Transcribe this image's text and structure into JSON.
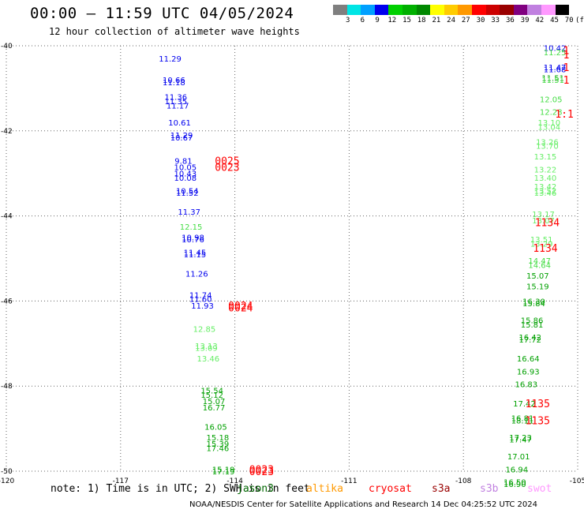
{
  "header": {
    "title": "00:00 – 11:59 UTC 04/05/2024",
    "subtitle": "12 hour collection of altimeter wave heights"
  },
  "colorbar": {
    "swatches": [
      "#7f7f7f",
      "#00e5e5",
      "#00a0ff",
      "#0000ee",
      "#00d000",
      "#00b000",
      "#008800",
      "#ffff00",
      "#ffcc00",
      "#ff9900",
      "#ff0000",
      "#cc0000",
      "#990000",
      "#800080",
      "#c080e0",
      "#ff99ff",
      "#000000"
    ],
    "ticks": [
      "3",
      "6",
      "9",
      "12",
      "15",
      "18",
      "21",
      "24",
      "27",
      "30",
      "33",
      "36",
      "39",
      "42",
      "45",
      "70",
      "(ft)"
    ]
  },
  "chart_data": {
    "type": "scatter",
    "xlim": [
      -120,
      -105
    ],
    "ylim": [
      -50,
      -40
    ],
    "x_ticks": [
      "-120",
      "-117",
      "-114",
      "-111",
      "-108",
      "-105"
    ],
    "y_ticks": [
      "-50",
      "-48",
      "-46",
      "-44",
      "-42",
      "-40"
    ],
    "grid": true,
    "points": [
      {
        "x": -115.7,
        "y": -40.3,
        "label": "11.29",
        "color": "#0000ee"
      },
      {
        "x": -115.6,
        "y": -40.8,
        "label": "10.66",
        "color": "#0000ee"
      },
      {
        "x": -115.6,
        "y": -40.85,
        "label": "11.18",
        "color": "#0000ee"
      },
      {
        "x": -115.55,
        "y": -41.2,
        "label": "11.36",
        "color": "#0000ee"
      },
      {
        "x": -115.55,
        "y": -41.3,
        "label": "11.35",
        "color": "#0000ee"
      },
      {
        "x": -115.5,
        "y": -41.4,
        "label": "11.17",
        "color": "#0000ee"
      },
      {
        "x": -115.45,
        "y": -41.8,
        "label": "10.61",
        "color": "#0000ee"
      },
      {
        "x": -115.4,
        "y": -42.1,
        "label": "11.29",
        "color": "#0000ee"
      },
      {
        "x": -115.4,
        "y": -42.15,
        "label": "10.67",
        "color": "#0000ee"
      },
      {
        "x": -115.35,
        "y": -42.7,
        "label": "9.81",
        "color": "#0000ee"
      },
      {
        "x": -115.3,
        "y": -42.85,
        "label": "10.05",
        "color": "#0000ee"
      },
      {
        "x": -115.3,
        "y": -43.0,
        "label": "10.43",
        "color": "#0000ee"
      },
      {
        "x": -115.3,
        "y": -43.1,
        "label": "10.08",
        "color": "#0000ee"
      },
      {
        "x": -115.25,
        "y": -43.4,
        "label": "10.54",
        "color": "#0000ee"
      },
      {
        "x": -115.25,
        "y": -43.45,
        "label": "11.52",
        "color": "#0000ee"
      },
      {
        "x": -115.2,
        "y": -43.9,
        "label": "11.37",
        "color": "#0000ee"
      },
      {
        "x": -115.15,
        "y": -44.25,
        "label": "12.15",
        "color": "#44dd44"
      },
      {
        "x": -115.1,
        "y": -44.5,
        "label": "10.98",
        "color": "#0000ee"
      },
      {
        "x": -115.1,
        "y": -44.55,
        "label": "10.76",
        "color": "#0000ee"
      },
      {
        "x": -115.05,
        "y": -44.85,
        "label": "11.45",
        "color": "#0000ee"
      },
      {
        "x": -115.05,
        "y": -44.9,
        "label": "11.15",
        "color": "#0000ee"
      },
      {
        "x": -115.0,
        "y": -45.35,
        "label": "11.26",
        "color": "#0000ee"
      },
      {
        "x": -114.9,
        "y": -45.85,
        "label": "11.74",
        "color": "#0000ee"
      },
      {
        "x": -114.9,
        "y": -45.95,
        "label": "11.60",
        "color": "#0000ee"
      },
      {
        "x": -114.85,
        "y": -46.1,
        "label": "11.93",
        "color": "#0000ee"
      },
      {
        "x": -114.8,
        "y": -46.65,
        "label": "12.85",
        "color": "#66ee66"
      },
      {
        "x": -114.75,
        "y": -47.05,
        "label": "13.13",
        "color": "#66ee66"
      },
      {
        "x": -114.75,
        "y": -47.1,
        "label": "13.09",
        "color": "#66ee66"
      },
      {
        "x": -114.7,
        "y": -47.35,
        "label": "13.46",
        "color": "#66ee66"
      },
      {
        "x": -114.6,
        "y": -48.1,
        "label": "15.54",
        "color": "#00a000"
      },
      {
        "x": -114.6,
        "y": -48.2,
        "label": "15.12",
        "color": "#00a000"
      },
      {
        "x": -114.55,
        "y": -48.35,
        "label": "15.07",
        "color": "#00a000"
      },
      {
        "x": -114.55,
        "y": -48.5,
        "label": "16.77",
        "color": "#00a000"
      },
      {
        "x": -114.5,
        "y": -48.95,
        "label": "16.05",
        "color": "#00a000"
      },
      {
        "x": -114.45,
        "y": -49.2,
        "label": "15.18",
        "color": "#00a000"
      },
      {
        "x": -114.45,
        "y": -49.35,
        "label": "15.39",
        "color": "#00a000"
      },
      {
        "x": -114.45,
        "y": -49.45,
        "label": "17.46",
        "color": "#00a000"
      },
      {
        "x": -114.3,
        "y": -49.95,
        "label": "15.19",
        "color": "#00a000"
      },
      {
        "x": -114.3,
        "y": -50.0,
        "label": "17.19",
        "color": "#00a000"
      },
      {
        "x": -105.6,
        "y": -40.05,
        "label": "10.42",
        "color": "#0000ee"
      },
      {
        "x": -105.6,
        "y": -40.15,
        "label": "11.25",
        "color": "#44dd44"
      },
      {
        "x": -105.6,
        "y": -40.5,
        "label": "11.47",
        "color": "#0000ee"
      },
      {
        "x": -105.6,
        "y": -40.55,
        "label": "11.68",
        "color": "#0000ee"
      },
      {
        "x": -105.65,
        "y": -40.75,
        "label": "11.51",
        "color": "#00a000"
      },
      {
        "x": -105.65,
        "y": -40.8,
        "label": "11.51",
        "color": "#44dd44"
      },
      {
        "x": -105.7,
        "y": -41.25,
        "label": "12.05",
        "color": "#44dd44"
      },
      {
        "x": -105.7,
        "y": -41.55,
        "label": "12.28",
        "color": "#44dd44"
      },
      {
        "x": -105.75,
        "y": -41.8,
        "label": "13.10",
        "color": "#66ee66"
      },
      {
        "x": -105.75,
        "y": -41.9,
        "label": "13.04",
        "color": "#66ee66"
      },
      {
        "x": -105.8,
        "y": -42.25,
        "label": "13.26",
        "color": "#66ee66"
      },
      {
        "x": -105.8,
        "y": -42.35,
        "label": "13.70",
        "color": "#66ee66"
      },
      {
        "x": -105.85,
        "y": -42.6,
        "label": "13.15",
        "color": "#66ee66"
      },
      {
        "x": -105.85,
        "y": -42.9,
        "label": "13.22",
        "color": "#66ee66"
      },
      {
        "x": -105.85,
        "y": -43.1,
        "label": "13.40",
        "color": "#66ee66"
      },
      {
        "x": -105.85,
        "y": -43.3,
        "label": "13.42",
        "color": "#66ee66"
      },
      {
        "x": -105.85,
        "y": -43.4,
        "label": "13.52",
        "color": "#66ee66"
      },
      {
        "x": -105.85,
        "y": -43.45,
        "label": "13.46",
        "color": "#66ee66"
      },
      {
        "x": -105.9,
        "y": -43.95,
        "label": "13.17",
        "color": "#66ee66"
      },
      {
        "x": -105.9,
        "y": -44.1,
        "label": "13.07",
        "color": "#66ee66"
      },
      {
        "x": -105.95,
        "y": -44.55,
        "label": "13.51",
        "color": "#66ee66"
      },
      {
        "x": -105.95,
        "y": -44.65,
        "label": "13.29",
        "color": "#66ee66"
      },
      {
        "x": -106.0,
        "y": -45.05,
        "label": "14.47",
        "color": "#44dd44"
      },
      {
        "x": -106.0,
        "y": -45.15,
        "label": "14.64",
        "color": "#44dd44"
      },
      {
        "x": -106.05,
        "y": -45.4,
        "label": "15.07",
        "color": "#00a000"
      },
      {
        "x": -106.05,
        "y": -45.65,
        "label": "15.19",
        "color": "#00a000"
      },
      {
        "x": -106.15,
        "y": -46.0,
        "label": "16.30",
        "color": "#00a000"
      },
      {
        "x": -106.15,
        "y": -46.05,
        "label": "15.84",
        "color": "#00a000"
      },
      {
        "x": -106.2,
        "y": -46.45,
        "label": "15.86",
        "color": "#00a000"
      },
      {
        "x": -106.2,
        "y": -46.55,
        "label": "15.81",
        "color": "#00a000"
      },
      {
        "x": -106.25,
        "y": -46.85,
        "label": "16.42",
        "color": "#00a000"
      },
      {
        "x": -106.25,
        "y": -46.9,
        "label": "17.72",
        "color": "#00a000"
      },
      {
        "x": -106.3,
        "y": -47.35,
        "label": "16.64",
        "color": "#00a000"
      },
      {
        "x": -106.3,
        "y": -47.65,
        "label": "16.93",
        "color": "#00a000"
      },
      {
        "x": -106.35,
        "y": -47.95,
        "label": "16.83",
        "color": "#00a000"
      },
      {
        "x": -106.4,
        "y": -48.4,
        "label": "17.42",
        "color": "#00a000"
      },
      {
        "x": -106.45,
        "y": -48.75,
        "label": "16.81",
        "color": "#00a000"
      },
      {
        "x": -106.45,
        "y": -48.8,
        "label": "18.11",
        "color": "#00a000"
      },
      {
        "x": -106.5,
        "y": -49.2,
        "label": "17.23",
        "color": "#00a000"
      },
      {
        "x": -106.5,
        "y": -49.25,
        "label": "17.47",
        "color": "#00a000"
      },
      {
        "x": -106.55,
        "y": -49.65,
        "label": "17.01",
        "color": "#00a000"
      },
      {
        "x": -106.6,
        "y": -49.95,
        "label": "16.94",
        "color": "#00a000"
      },
      {
        "x": -106.65,
        "y": -50.25,
        "label": "16.50",
        "color": "#00a000"
      },
      {
        "x": -106.65,
        "y": -50.3,
        "label": "16.90",
        "color": "#00a000"
      }
    ],
    "time_stamps": [
      {
        "x": -114.2,
        "y": -42.7,
        "label": "0025"
      },
      {
        "x": -114.2,
        "y": -42.85,
        "label": "0023"
      },
      {
        "x": -113.85,
        "y": -46.1,
        "label": "0024"
      },
      {
        "x": -113.85,
        "y": -46.15,
        "label": "0024"
      },
      {
        "x": -113.3,
        "y": -49.95,
        "label": "0023"
      },
      {
        "x": -113.3,
        "y": -50.0,
        "label": "0023"
      },
      {
        "x": -105.3,
        "y": -40.1,
        "label": "1"
      },
      {
        "x": -105.3,
        "y": -40.2,
        "label": "1"
      },
      {
        "x": -105.3,
        "y": -40.5,
        "label": "1"
      },
      {
        "x": -105.3,
        "y": -40.8,
        "label": "1"
      },
      {
        "x": -105.35,
        "y": -41.6,
        "label": "1:1"
      },
      {
        "x": -105.8,
        "y": -44.15,
        "label": "1134"
      },
      {
        "x": -105.85,
        "y": -44.75,
        "label": "1134"
      },
      {
        "x": -106.05,
        "y": -48.4,
        "label": "1135"
      },
      {
        "x": -106.05,
        "y": -48.8,
        "label": "1135"
      }
    ]
  },
  "footer": {
    "note": "note:  1) Time is in UTC; 2) SWH is in feet",
    "satellites": [
      {
        "name": "jason3",
        "color": "#006600"
      },
      {
        "name": "altika",
        "color": "#ff9900"
      },
      {
        "name": "cryosat",
        "color": "#ff0000"
      },
      {
        "name": "s3a",
        "color": "#990000"
      },
      {
        "name": "s3b",
        "color": "#c080e0"
      },
      {
        "name": "swot",
        "color": "#ff99ff"
      }
    ],
    "credit": "NOAA/NESDIS Center for Satellite Applications and Research   14 Dec 04:25:52 UTC 2024"
  },
  "timestamp_color": "#ff0000"
}
